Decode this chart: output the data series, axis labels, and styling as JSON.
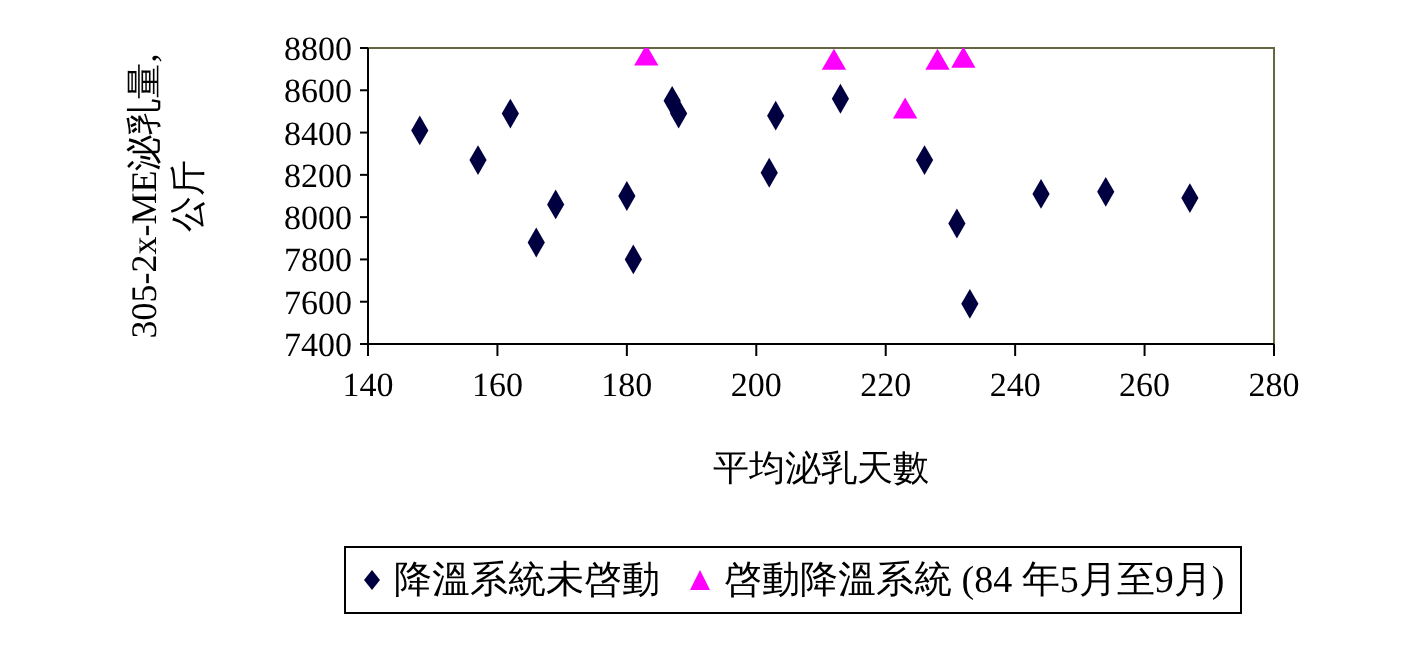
{
  "chart_data": {
    "type": "scatter",
    "xlabel": "平均泌乳天數",
    "ylabel": "305-2x-ME泌乳量, 公斤",
    "xlim": [
      140,
      280
    ],
    "xticks": [
      140,
      160,
      180,
      200,
      220,
      240,
      260,
      280
    ],
    "ylim": [
      7400,
      8800
    ],
    "yticks": [
      7400,
      7600,
      7800,
      8000,
      8200,
      8400,
      8600,
      8800
    ],
    "grid": false,
    "legend": "bottom",
    "series": [
      {
        "name": "降溫系統未啓動",
        "color": "#000040",
        "marker": "diamond",
        "x": [
          148,
          157,
          162,
          166,
          169,
          180,
          181,
          187,
          188,
          202,
          203,
          213,
          226,
          231,
          233,
          244,
          254,
          267
        ],
        "values": [
          8410,
          8270,
          8490,
          7880,
          8060,
          8100,
          7800,
          8550,
          8490,
          8210,
          8480,
          8560,
          8270,
          7970,
          7590,
          8110,
          8120,
          8090
        ]
      },
      {
        "name": "啓動降溫系統 (84 年5月至9月)",
        "color": "#ff00ff",
        "marker": "triangle",
        "x": [
          183,
          212,
          223,
          228,
          232
        ],
        "values": [
          8750,
          8730,
          8500,
          8730,
          8740
        ]
      }
    ]
  }
}
